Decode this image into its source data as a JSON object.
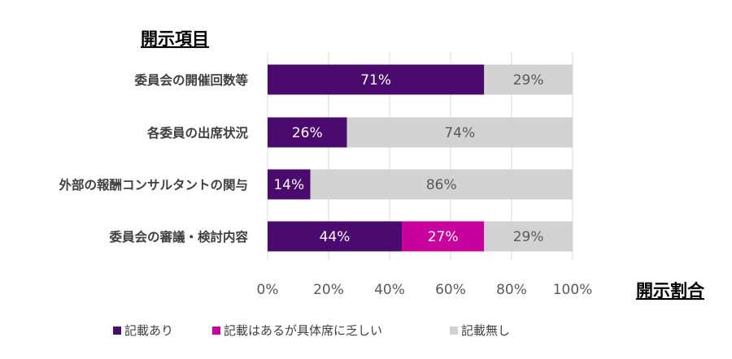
{
  "chart_data": {
    "type": "bar",
    "orientation": "horizontal",
    "stacked": true,
    "ylabel": "開示項目",
    "xlabel": "開示割合",
    "categories": [
      "委員会の開催回数等",
      "各委員の出席状況",
      "外部の報酬コンサルタントの関与",
      "委員会の審議・検討内容"
    ],
    "series": [
      {
        "name": "記載あり",
        "color": "#4b0a6e",
        "label_color": "#ffffff",
        "values": [
          71,
          26,
          14,
          44
        ],
        "labels": [
          "71%",
          "26%",
          "14%",
          "44%"
        ]
      },
      {
        "name": "記載はあるが具体席に乏しい",
        "color": "#c8009e",
        "label_color": "#ffffff",
        "values": [
          0,
          0,
          0,
          27
        ],
        "labels": [
          "",
          "",
          "",
          "27%"
        ]
      },
      {
        "name": "記載無し",
        "color": "#d2d2d2",
        "label_color": "#595959",
        "values": [
          29,
          74,
          86,
          29
        ],
        "labels": [
          "29%",
          "74%",
          "86%",
          "29%"
        ]
      }
    ],
    "xlim": [
      0,
      100
    ],
    "xticks": [
      0,
      20,
      40,
      60,
      80,
      100
    ],
    "xtick_labels": [
      "0%",
      "20%",
      "40%",
      "60%",
      "80%",
      "100%"
    ],
    "grid": true,
    "legend_position": "bottom"
  }
}
